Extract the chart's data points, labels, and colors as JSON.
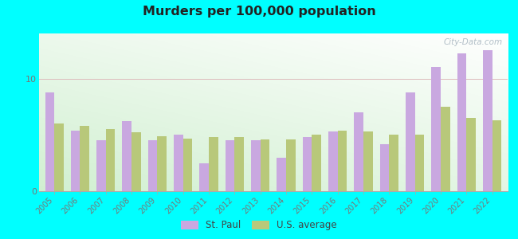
{
  "title": "Murders per 100,000 population",
  "years": [
    2005,
    2006,
    2007,
    2008,
    2009,
    2010,
    2011,
    2012,
    2013,
    2014,
    2015,
    2016,
    2017,
    2018,
    2019,
    2020,
    2021,
    2022
  ],
  "st_paul": [
    8.8,
    5.4,
    4.5,
    6.2,
    4.5,
    5.0,
    2.5,
    4.5,
    4.5,
    3.0,
    4.8,
    5.3,
    7.0,
    4.2,
    8.8,
    11.0,
    12.2,
    12.5
  ],
  "us_avg": [
    6.0,
    5.8,
    5.5,
    5.2,
    4.9,
    4.7,
    4.8,
    4.8,
    4.6,
    4.6,
    5.0,
    5.4,
    5.3,
    5.0,
    5.0,
    7.5,
    6.5,
    6.3
  ],
  "stpaul_color": "#c9a8e0",
  "usavg_color": "#b8c87a",
  "bg_color_tl": "#e8f5e0",
  "bg_color_br": "#ffffff",
  "fig_bg": "#00ffff",
  "watermark": "City-Data.com",
  "legend_stpaul": "St. Paul",
  "legend_usavg": "U.S. average",
  "ylim": [
    0,
    14
  ],
  "yticks": [
    0,
    10
  ]
}
